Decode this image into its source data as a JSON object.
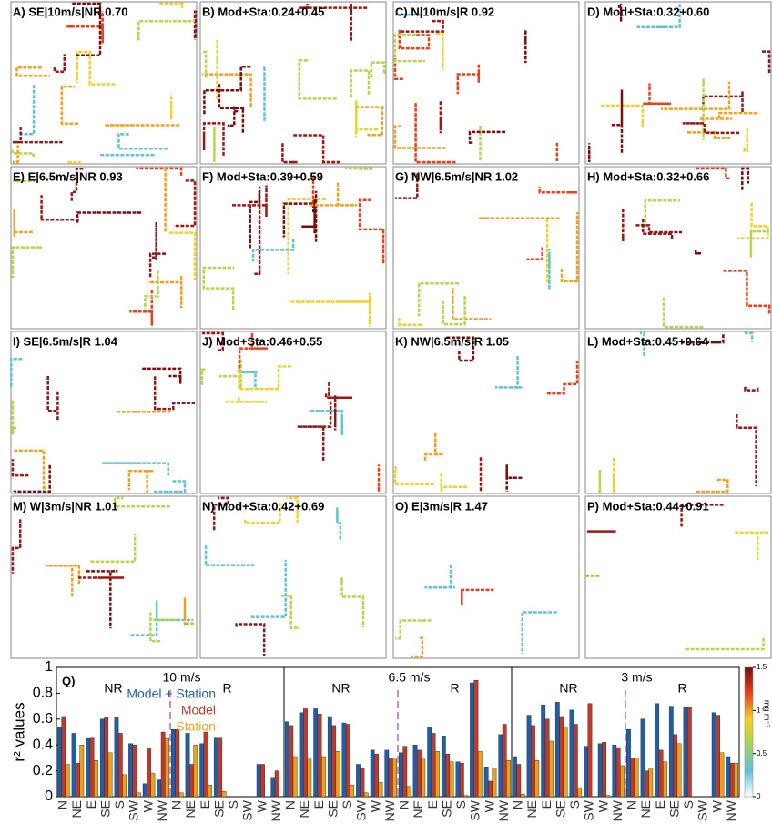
{
  "panels": [
    "A) SE|10m/s|NR 0.70",
    "B) Mod+Sta:0.24+0.45",
    "C) N|10m/s|R 0.92",
    "D) Mod+Sta:0.32+0.60",
    "E) E|6.5m/s|NR 0.93",
    "F) Mod+Sta:0.39+0.59",
    "G) NW|6.5m/s|NR 1.02",
    "H) Mod+Sta:0.32+0.66",
    "I) SE|6.5m/s|R 1.04",
    "J) Mod+Sta:0.46+0.55",
    "K) NW|6.5m/s|R 1.05",
    "L) Mod+Sta:0.45+0.64",
    "M) W|3m/s|NR 1.01",
    "N) Mod+Sta:0.42+0.69",
    "O) E|3m/s|R 1.47",
    "P) Mod+Sta:0.44+0.91"
  ],
  "colorbar": {
    "unit": "mg m⁻³",
    "ticks": [
      0,
      0.5,
      1,
      1.5
    ],
    "lim": [
      0,
      1.5
    ]
  },
  "chart_data": {
    "type": "bar",
    "panel_label": "Q)",
    "ylabel": "r² values",
    "ylim": [
      0,
      1
    ],
    "yticks": [
      0,
      0.2,
      0.4,
      0.6,
      0.8,
      1
    ],
    "speeds": [
      "10 m/s",
      "6.5 m/s",
      "3 m/s"
    ],
    "regimes": [
      "NR",
      "R"
    ],
    "categories": [
      "N",
      "NE",
      "E",
      "SE",
      "S",
      "SW",
      "W",
      "NW",
      "N",
      "NE",
      "E",
      "SE",
      "S",
      "SW",
      "W",
      "NW",
      "N",
      "NE",
      "E",
      "SE",
      "S",
      "SW",
      "W",
      "NW",
      "N",
      "NE",
      "E",
      "SE",
      "S",
      "SW",
      "W",
      "NW",
      "N",
      "NE",
      "E",
      "SE",
      "S",
      "SW",
      "W",
      "NW",
      "N",
      "NE",
      "E",
      "SE",
      "S",
      "SW",
      "W",
      "NW"
    ],
    "series": [
      {
        "name": "Model + Station",
        "color": "#1f5fa8",
        "values": [
          0.54,
          0.49,
          0.45,
          0.6,
          0.61,
          0.41,
          0.1,
          0.13,
          0.52,
          0.49,
          0.41,
          0.46,
          null,
          null,
          0.25,
          0.15,
          0.58,
          0.65,
          0.68,
          0.62,
          0.57,
          0.25,
          0.36,
          0.36,
          0.34,
          0.4,
          0.54,
          0.47,
          0.27,
          0.88,
          0.23,
          0.48,
          0.31,
          0.63,
          0.71,
          0.73,
          0.67,
          0.39,
          0.41,
          0.4,
          0.52,
          0.6,
          0.72,
          0.7,
          0.69,
          null,
          0.65,
          0.31
        ]
      },
      {
        "name": "Model",
        "color": "#c0392b",
        "values": [
          0.62,
          0.26,
          0.46,
          0.61,
          0.49,
          0.4,
          0.37,
          0.5,
          0.52,
          0.25,
          0.5,
          0.46,
          null,
          null,
          0.25,
          0.2,
          0.55,
          0.68,
          0.64,
          0.55,
          0.56,
          0.22,
          0.33,
          0.3,
          0.39,
          0.36,
          0.49,
          0.33,
          0.26,
          0.9,
          0.12,
          0.56,
          0.25,
          0.55,
          0.6,
          0.62,
          0.56,
          0.72,
          0.42,
          0.38,
          0.3,
          0.2,
          0.36,
          0.48,
          0.69,
          null,
          0.63,
          0.26
        ]
      },
      {
        "name": "Station",
        "color": "#e8a21c",
        "values": [
          0.25,
          0.4,
          0.28,
          0.34,
          0.17,
          0.03,
          0.18,
          0.45,
          0.03,
          0.4,
          0.09,
          0.04,
          null,
          null,
          0,
          0,
          0.31,
          0.29,
          0.31,
          0.35,
          0.09,
          0.03,
          0.11,
          0.29,
          0.08,
          0.29,
          0.35,
          0.27,
          0.01,
          0.35,
          0.22,
          0.28,
          0.02,
          0.28,
          0.43,
          0.54,
          0.07,
          0,
          0.01,
          0.24,
          0.3,
          0.22,
          0.27,
          0.41,
          0,
          null,
          0.34,
          0.26
        ]
      }
    ]
  }
}
